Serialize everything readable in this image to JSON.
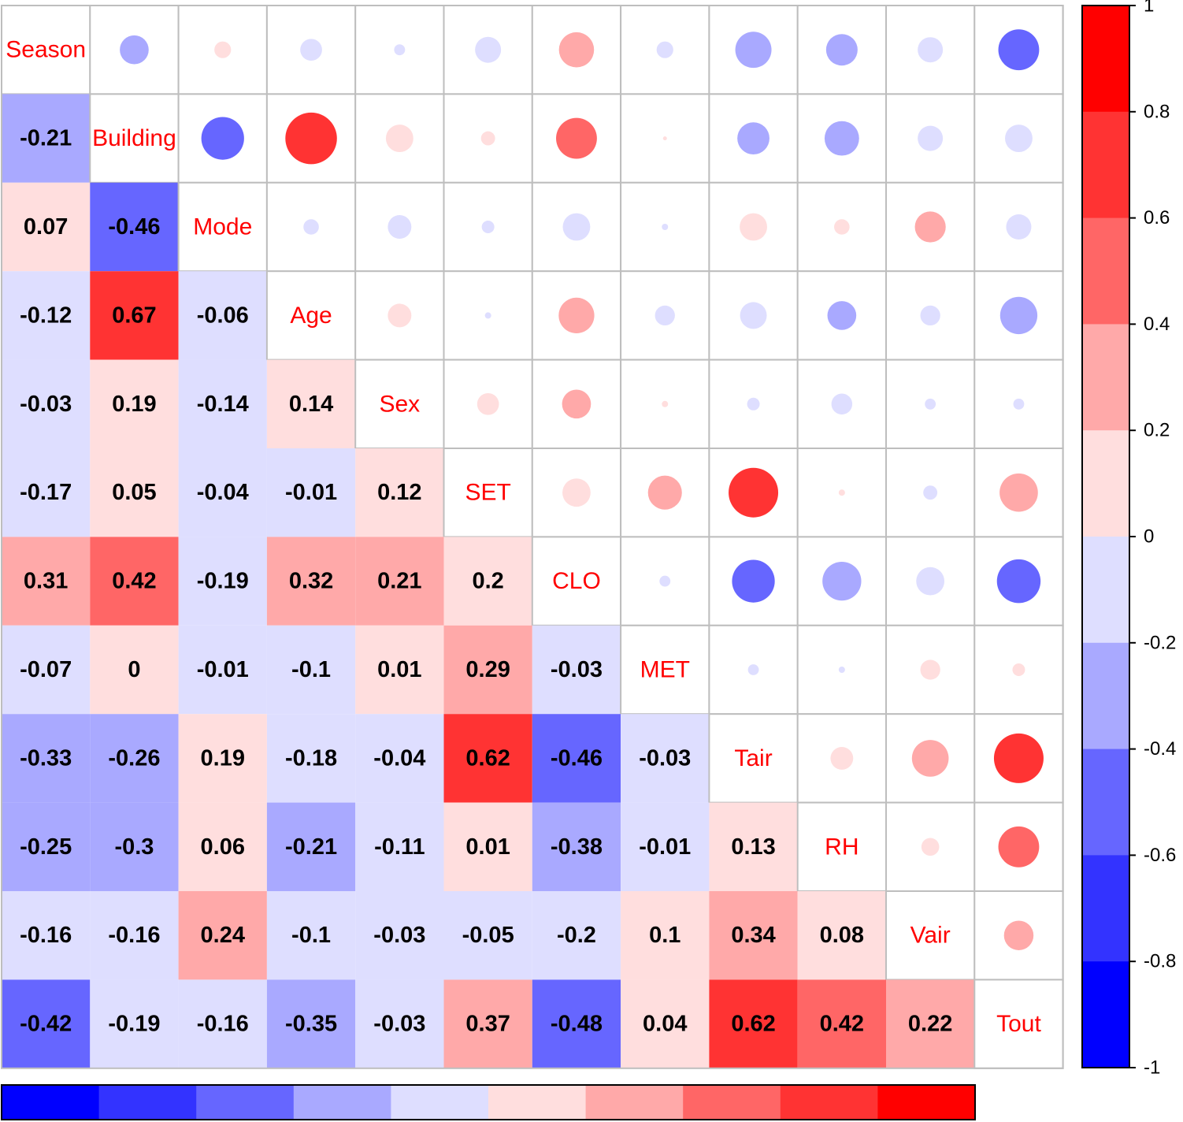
{
  "colors": {
    "palette": [
      "#0000ff",
      "#3333ff",
      "#6666ff",
      "#a9a9ff",
      "#dedeff",
      "#ffdede",
      "#ffa9a9",
      "#ff6666",
      "#ff3333",
      "#ff0000"
    ],
    "diagonal_text": "#ff0000",
    "value_text": "#000000",
    "grid": "#bebebe"
  },
  "chart_data": {
    "type": "heatmap",
    "title": "",
    "style": "correlation matrix: lower triangle colored squares with numbers, upper triangle circles sized by |r|, variable names on diagonal",
    "variables": [
      "Season",
      "Building",
      "Mode",
      "Age",
      "Sex",
      "SET",
      "CLO",
      "MET",
      "Tair",
      "RH",
      "Vair",
      "Tout"
    ],
    "lower_labels": [
      [],
      [
        "-0.21"
      ],
      [
        "0.07",
        "-0.46"
      ],
      [
        "-0.12",
        "0.67",
        "-0.06"
      ],
      [
        "-0.03",
        "0.19",
        "-0.14",
        "0.14"
      ],
      [
        "-0.17",
        "0.05",
        "-0.04",
        "-0.01",
        "0.12"
      ],
      [
        "0.31",
        "0.42",
        "-0.19",
        "0.32",
        "0.21",
        "0.2"
      ],
      [
        "-0.07",
        "0",
        "-0.01",
        "-0.1",
        "0.01",
        "0.29",
        "-0.03"
      ],
      [
        "-0.33",
        "-0.26",
        "0.19",
        "-0.18",
        "-0.04",
        "0.62",
        "-0.46",
        "-0.03"
      ],
      [
        "-0.25",
        "-0.3",
        "0.06",
        "-0.21",
        "-0.11",
        "0.01",
        "-0.38",
        "-0.01",
        "0.13"
      ],
      [
        "-0.16",
        "-0.16",
        "0.24",
        "-0.1",
        "-0.03",
        "-0.05",
        "-0.2",
        "0.1",
        "0.34",
        "0.08"
      ],
      [
        "-0.42",
        "-0.19",
        "-0.16",
        "-0.35",
        "-0.03",
        "0.37",
        "-0.48",
        "0.04",
        "0.62",
        "0.42",
        "0.22"
      ]
    ],
    "colorbar": {
      "range": [
        -1,
        1
      ],
      "ticks": [
        "1",
        "0.8",
        "0.6",
        "0.4",
        "0.2",
        "0",
        "-0.2",
        "-0.4",
        "-0.6",
        "-0.8",
        "-1"
      ],
      "bins": 10,
      "placement": "right"
    },
    "bottom_legend": {
      "bins": 10,
      "placement": "bottom"
    },
    "grid": true
  }
}
